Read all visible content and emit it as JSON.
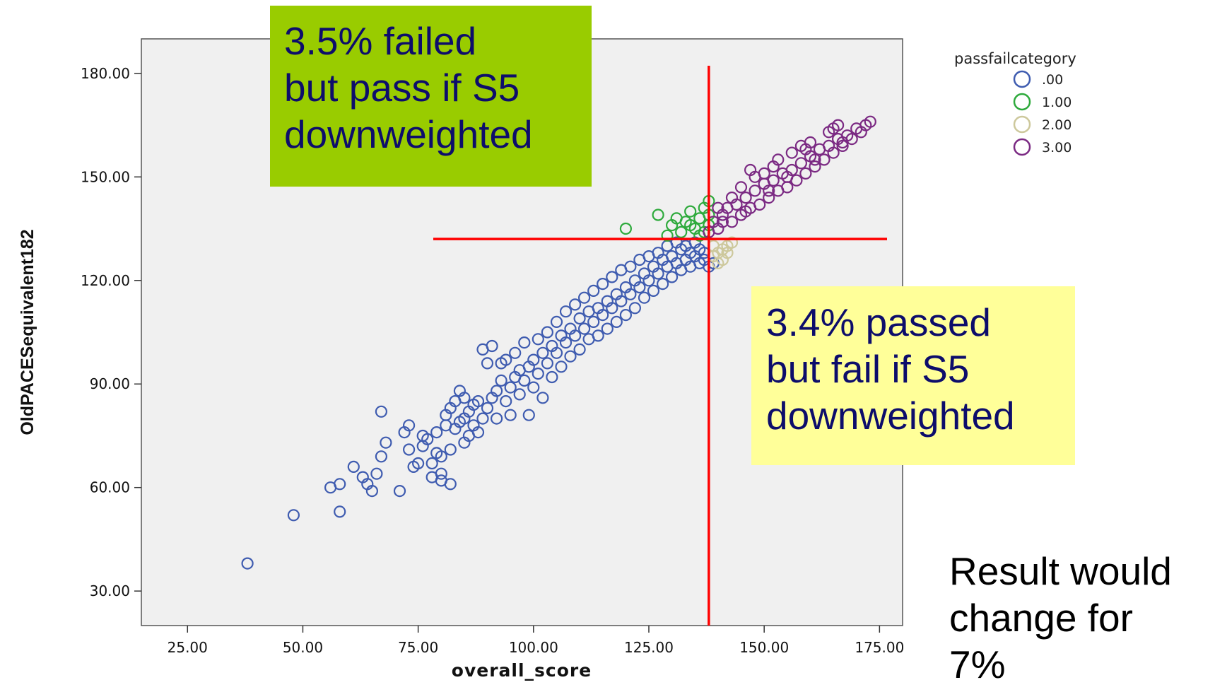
{
  "chart_data": {
    "type": "scatter",
    "xlabel": "overall_score",
    "ylabel": "OldPACESequivalent182",
    "xlim": [
      15,
      180
    ],
    "ylim": [
      20,
      190
    ],
    "x_ticks": [
      "25.00",
      "50.00",
      "75.00",
      "100.00",
      "125.00",
      "150.00",
      "175.00"
    ],
    "y_ticks": [
      "30.00",
      "60.00",
      "90.00",
      "120.00",
      "150.00",
      "180.00"
    ],
    "legend": {
      "title": "passfailcategory",
      "position": "top-right",
      "entries": [
        {
          "label": ".00",
          "color": "#3f5cb0"
        },
        {
          "label": "1.00",
          "color": "#2eaa3c"
        },
        {
          "label": "2.00",
          "color": "#cdc89c"
        },
        {
          "label": "3.00",
          "color": "#7b2a83"
        }
      ]
    },
    "plot_background": "#f0f0f0",
    "thresholds": {
      "x": 138,
      "y": 132,
      "color": "#ff0000"
    },
    "series": [
      {
        "category": ".00",
        "points": [
          [
            38,
            38
          ],
          [
            48,
            52
          ],
          [
            58,
            53
          ],
          [
            56,
            60
          ],
          [
            58,
            61
          ],
          [
            61,
            66
          ],
          [
            63,
            63
          ],
          [
            64,
            61
          ],
          [
            65,
            59
          ],
          [
            66,
            64
          ],
          [
            67,
            69
          ],
          [
            67,
            82
          ],
          [
            68,
            73
          ],
          [
            71,
            59
          ],
          [
            72,
            76
          ],
          [
            73,
            71
          ],
          [
            73,
            78
          ],
          [
            74,
            66
          ],
          [
            75,
            67
          ],
          [
            76,
            72
          ],
          [
            76,
            75
          ],
          [
            77,
            74
          ],
          [
            78,
            63
          ],
          [
            78,
            67
          ],
          [
            79,
            70
          ],
          [
            79,
            76
          ],
          [
            80,
            62
          ],
          [
            80,
            64
          ],
          [
            80,
            69
          ],
          [
            81,
            78
          ],
          [
            81,
            81
          ],
          [
            82,
            83
          ],
          [
            82,
            61
          ],
          [
            82,
            71
          ],
          [
            83,
            77
          ],
          [
            83,
            85
          ],
          [
            84,
            79
          ],
          [
            84,
            88
          ],
          [
            85,
            80
          ],
          [
            85,
            73
          ],
          [
            85,
            86
          ],
          [
            86,
            82
          ],
          [
            86,
            75
          ],
          [
            87,
            78
          ],
          [
            87,
            84
          ],
          [
            88,
            85
          ],
          [
            88,
            76
          ],
          [
            89,
            80
          ],
          [
            89,
            100
          ],
          [
            90,
            83
          ],
          [
            90,
            96
          ],
          [
            91,
            86
          ],
          [
            91,
            101
          ],
          [
            92,
            88
          ],
          [
            92,
            80
          ],
          [
            93,
            91
          ],
          [
            93,
            96
          ],
          [
            94,
            85
          ],
          [
            94,
            97
          ],
          [
            95,
            89
          ],
          [
            95,
            81
          ],
          [
            96,
            92
          ],
          [
            96,
            99
          ],
          [
            97,
            94
          ],
          [
            97,
            87
          ],
          [
            98,
            102
          ],
          [
            98,
            91
          ],
          [
            99,
            95
          ],
          [
            99,
            81
          ],
          [
            100,
            97
          ],
          [
            100,
            89
          ],
          [
            101,
            103
          ],
          [
            101,
            93
          ],
          [
            102,
            99
          ],
          [
            102,
            86
          ],
          [
            103,
            105
          ],
          [
            103,
            96
          ],
          [
            104,
            92
          ],
          [
            104,
            101
          ],
          [
            105,
            108
          ],
          [
            105,
            99
          ],
          [
            106,
            104
          ],
          [
            106,
            95
          ],
          [
            107,
            111
          ],
          [
            107,
            102
          ],
          [
            108,
            98
          ],
          [
            108,
            106
          ],
          [
            109,
            113
          ],
          [
            109,
            104
          ],
          [
            110,
            100
          ],
          [
            110,
            109
          ],
          [
            111,
            115
          ],
          [
            111,
            106
          ],
          [
            112,
            103
          ],
          [
            112,
            111
          ],
          [
            113,
            117
          ],
          [
            113,
            108
          ],
          [
            114,
            104
          ],
          [
            114,
            112
          ],
          [
            115,
            119
          ],
          [
            115,
            110
          ],
          [
            116,
            106
          ],
          [
            116,
            114
          ],
          [
            117,
            121
          ],
          [
            117,
            112
          ],
          [
            118,
            108
          ],
          [
            118,
            116
          ],
          [
            119,
            123
          ],
          [
            119,
            114
          ],
          [
            120,
            110
          ],
          [
            120,
            118
          ],
          [
            121,
            124
          ],
          [
            121,
            116
          ],
          [
            122,
            112
          ],
          [
            122,
            120
          ],
          [
            123,
            126
          ],
          [
            123,
            118
          ],
          [
            124,
            115
          ],
          [
            124,
            122
          ],
          [
            125,
            127
          ],
          [
            125,
            120
          ],
          [
            126,
            117
          ],
          [
            126,
            124
          ],
          [
            127,
            128
          ],
          [
            127,
            122
          ],
          [
            128,
            119
          ],
          [
            128,
            126
          ],
          [
            129,
            130
          ],
          [
            129,
            124
          ],
          [
            130,
            121
          ],
          [
            130,
            127
          ],
          [
            131,
            131
          ],
          [
            131,
            125
          ],
          [
            132,
            123
          ],
          [
            132,
            129
          ],
          [
            133,
            130
          ],
          [
            133,
            126
          ],
          [
            134,
            124
          ],
          [
            134,
            128
          ],
          [
            135,
            131
          ],
          [
            135,
            127
          ],
          [
            136,
            125
          ],
          [
            136,
            129
          ],
          [
            137,
            128
          ],
          [
            137,
            126
          ],
          [
            138,
            124
          ],
          [
            139,
            125
          ]
        ]
      },
      {
        "category": "1.00",
        "points": [
          [
            120,
            135
          ],
          [
            127,
            139
          ],
          [
            129,
            133
          ],
          [
            130,
            136
          ],
          [
            131,
            138
          ],
          [
            132,
            134
          ],
          [
            133,
            137
          ],
          [
            134,
            140
          ],
          [
            135,
            135
          ],
          [
            136,
            138
          ],
          [
            137,
            141
          ],
          [
            137,
            134
          ],
          [
            138,
            136
          ],
          [
            138,
            139
          ],
          [
            138,
            143
          ],
          [
            136,
            133
          ],
          [
            134,
            136
          ]
        ]
      },
      {
        "category": "2.00",
        "points": [
          [
            139,
            127
          ],
          [
            140,
            128
          ],
          [
            141,
            129
          ],
          [
            142,
            130
          ],
          [
            143,
            131
          ],
          [
            139,
            130
          ],
          [
            140,
            125
          ],
          [
            141,
            126
          ],
          [
            142,
            128
          ]
        ]
      },
      {
        "category": "3.00",
        "points": [
          [
            138,
            134
          ],
          [
            139,
            137
          ],
          [
            140,
            135
          ],
          [
            141,
            139
          ],
          [
            142,
            141
          ],
          [
            143,
            137
          ],
          [
            144,
            142
          ],
          [
            145,
            139
          ],
          [
            146,
            144
          ],
          [
            147,
            141
          ],
          [
            148,
            146
          ],
          [
            149,
            142
          ],
          [
            150,
            148
          ],
          [
            151,
            144
          ],
          [
            152,
            149
          ],
          [
            153,
            146
          ],
          [
            154,
            151
          ],
          [
            155,
            147
          ],
          [
            156,
            152
          ],
          [
            157,
            149
          ],
          [
            158,
            154
          ],
          [
            159,
            151
          ],
          [
            160,
            156
          ],
          [
            161,
            153
          ],
          [
            162,
            158
          ],
          [
            163,
            155
          ],
          [
            164,
            159
          ],
          [
            165,
            157
          ],
          [
            166,
            161
          ],
          [
            167,
            159
          ],
          [
            168,
            162
          ],
          [
            169,
            161
          ],
          [
            170,
            164
          ],
          [
            171,
            163
          ],
          [
            172,
            165
          ],
          [
            173,
            166
          ],
          [
            145,
            147
          ],
          [
            148,
            150
          ],
          [
            152,
            153
          ],
          [
            156,
            157
          ],
          [
            160,
            160
          ],
          [
            164,
            163
          ],
          [
            140,
            141
          ],
          [
            143,
            144
          ],
          [
            150,
            151
          ],
          [
            158,
            159
          ],
          [
            166,
            165
          ],
          [
            141,
            137
          ],
          [
            146,
            140
          ],
          [
            151,
            146
          ],
          [
            155,
            150
          ],
          [
            161,
            155
          ],
          [
            167,
            160
          ],
          [
            147,
            152
          ],
          [
            153,
            155
          ],
          [
            159,
            158
          ],
          [
            165,
            164
          ]
        ]
      }
    ]
  },
  "annotations": {
    "failed_but_pass": [
      "3.5% failed",
      "but pass if S5",
      "downweighted"
    ],
    "passed_but_fail": [
      "3.4% passed",
      "but fail if S5",
      "downweighted"
    ],
    "note": [
      "Result would",
      "change for",
      "7%"
    ]
  }
}
